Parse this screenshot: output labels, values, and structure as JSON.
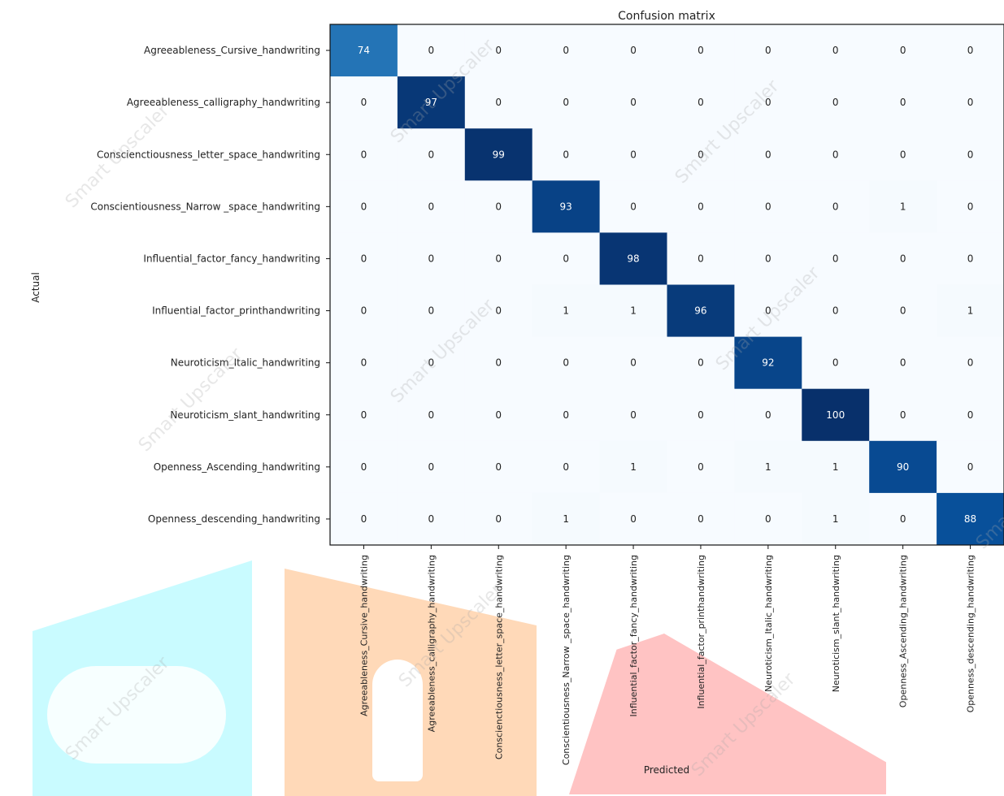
{
  "colors": {
    "low": "#f7fbff",
    "high": "#08306b",
    "cyan_shape": "#c9fbff",
    "orange_shape": "#ffd9b8",
    "red_shape": "#ffc3c3"
  },
  "watermark": "Smart Upscaler",
  "chart_data": {
    "type": "heatmap",
    "title": "Confusion matrix",
    "xlabel": "Predicted",
    "ylabel": "Actual",
    "y_categories": [
      "Agreeableness_Cursive_handwriting",
      "Agreeableness_calligraphy_handwriting",
      "Conscienctiousness_letter_space_handwriting",
      "Conscientiousness_Narrow _space_handwriting",
      "Influential_factor_fancy_handwriting",
      "Influential_factor_printhandwriting",
      "Neuroticism_Italic_handwriting",
      "Neuroticism_slant_handwriting",
      "Openness_Ascending_handwriting",
      "Openness_descending_handwriting"
    ],
    "x_categories": [
      "Agreeableness_Cursive_handwriting",
      "Agreeableness_calligraphy_handwriting",
      "Conscienctiousness_letter_space_handwriting",
      "Conscientiousness_Narrow _space_handwriting",
      "Influential_factor_fancy_handwriting",
      "Influential_factor_printhandwriting",
      "Neuroticism_Italic_handwriting",
      "Neuroticism_slant_handwriting",
      "Openness_Ascending_handwriting",
      "Openness_descending_handwriting"
    ],
    "values": [
      [
        74,
        0,
        0,
        0,
        0,
        0,
        0,
        0,
        0,
        0
      ],
      [
        0,
        97,
        0,
        0,
        0,
        0,
        0,
        0,
        0,
        0
      ],
      [
        0,
        0,
        99,
        0,
        0,
        0,
        0,
        0,
        0,
        0
      ],
      [
        0,
        0,
        0,
        93,
        0,
        0,
        0,
        0,
        1,
        0
      ],
      [
        0,
        0,
        0,
        0,
        98,
        0,
        0,
        0,
        0,
        0
      ],
      [
        0,
        0,
        0,
        1,
        1,
        96,
        0,
        0,
        0,
        1
      ],
      [
        0,
        0,
        0,
        0,
        0,
        0,
        92,
        0,
        0,
        0
      ],
      [
        0,
        0,
        0,
        0,
        0,
        0,
        0,
        100,
        0,
        0
      ],
      [
        0,
        0,
        0,
        0,
        1,
        0,
        1,
        1,
        90,
        0
      ],
      [
        0,
        0,
        0,
        1,
        0,
        0,
        0,
        1,
        0,
        88
      ]
    ],
    "colormap": "Blues",
    "vmin": 0,
    "vmax": 100
  }
}
